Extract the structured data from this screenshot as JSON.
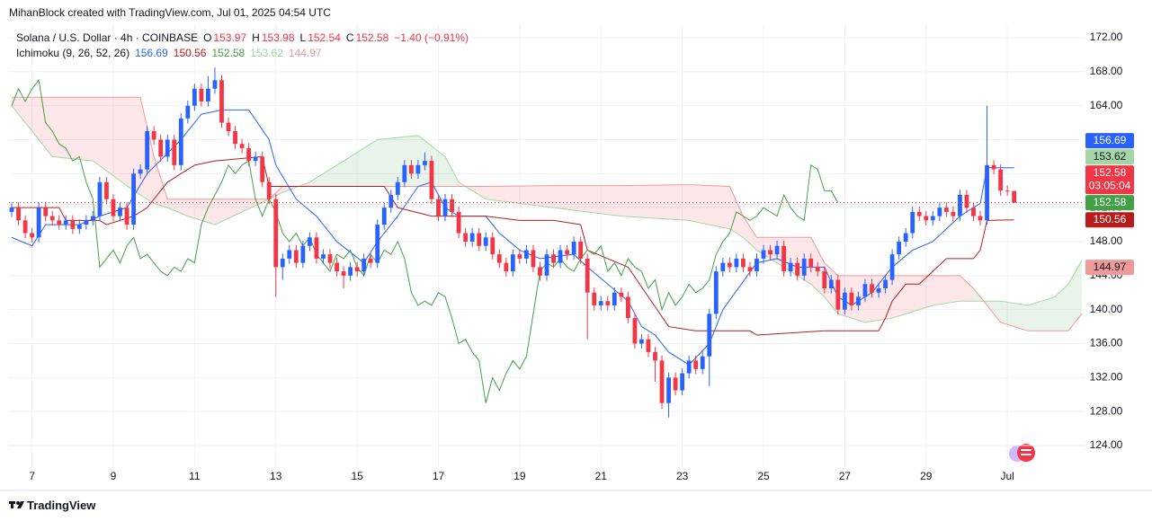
{
  "header": "MihanBlock created with TradingView.com, Jul 01, 2025 04:54 UTC",
  "footer": "TradingView",
  "chart_data": {
    "type": "candlestick",
    "title": "Solana / U.S. Dollar · 4h · COINBASE",
    "ohlc_legend": [
      {
        "label": "O",
        "value": 153.97
      },
      {
        "label": "H",
        "value": 153.98
      },
      {
        "label": "L",
        "value": 152.54
      },
      {
        "label": "C",
        "value": 152.58
      }
    ],
    "change": "−1.40 (−0.91%)",
    "legend_color": "#f23645",
    "indicator": {
      "name": "Ichimoku (9, 26, 52, 26)",
      "values": [
        {
          "value": 156.69,
          "color": "#2962ff"
        },
        {
          "value": 150.56,
          "color": "#b71c1c"
        },
        {
          "value": 152.58,
          "color": "#43a047"
        },
        {
          "value": 153.62,
          "color": "#a5d6a7"
        },
        {
          "value": 144.97,
          "color": "#ef9a9a"
        }
      ]
    },
    "up_color": "#2962ff",
    "down_color": "#f23645",
    "open": [
      151.5,
      152,
      150.5,
      149,
      148.5,
      152,
      151,
      150.5,
      150,
      150.5,
      149.5,
      150,
      150.5,
      151,
      155,
      153,
      151,
      152,
      150,
      156,
      156.5,
      161,
      160,
      158,
      160,
      157,
      162.5,
      164,
      166,
      164.5,
      166,
      167,
      162,
      161,
      159.5,
      159,
      157.5,
      158,
      155,
      153,
      145,
      146,
      147,
      145.5,
      147.5,
      148.5,
      146,
      146.5,
      145.5,
      144.5,
      144,
      145,
      144.5,
      146,
      145.5,
      150,
      152,
      153.5,
      155,
      157,
      156,
      157,
      157.5,
      153,
      151,
      153,
      151.5,
      149,
      148,
      149,
      147.5,
      148.5,
      146.5,
      145.5,
      144.5,
      146.5,
      146,
      147,
      145,
      144,
      146.5,
      145.5,
      147,
      146.5,
      148,
      146,
      142,
      140.5,
      141,
      140.5,
      142,
      141.5,
      139,
      136,
      136.5,
      135,
      134,
      129,
      132,
      130.5,
      132.5,
      134,
      133,
      134.5,
      139.5,
      144.5,
      145.5,
      145,
      146,
      145,
      144.5,
      146,
      147,
      146.5,
      147.5,
      144.5,
      145.5,
      144,
      146,
      145,
      144.5,
      142.5,
      143.5,
      140,
      142,
      140.5,
      141.5,
      143,
      142,
      142.5,
      143.5,
      146.5,
      148,
      149,
      151.5,
      151,
      150.5,
      151,
      152,
      151.5,
      151,
      153.5,
      152,
      151,
      150.5,
      157,
      156.5,
      154,
      153.97
    ],
    "high": [
      152.6,
      152.6,
      151.1,
      149.6,
      152.6,
      152.6,
      151.6,
      151.1,
      151.1,
      151.1,
      150.6,
      151.1,
      151.6,
      155.6,
      155.6,
      153.6,
      152.6,
      152.6,
      156.6,
      157.1,
      161.6,
      161.6,
      160.6,
      160.6,
      160.6,
      163.1,
      164.6,
      166.6,
      166.6,
      167.5,
      168.5,
      167.6,
      162.6,
      161.6,
      160.1,
      159.6,
      158.6,
      158.6,
      155.6,
      153.6,
      146.6,
      147.6,
      147.6,
      148.1,
      149.1,
      149.1,
      147.1,
      147.1,
      146.1,
      145.1,
      145.6,
      145.6,
      146.6,
      146.6,
      150.6,
      152.6,
      154.1,
      155.6,
      157.6,
      157.6,
      157.6,
      158.5,
      158.1,
      153.6,
      153.6,
      153.6,
      152.1,
      149.6,
      149.6,
      149.6,
      149.1,
      149.1,
      147.1,
      146.1,
      147.1,
      147.1,
      147.6,
      147.6,
      145.6,
      147.1,
      147.1,
      147.6,
      147.6,
      148.6,
      148.6,
      146.6,
      142.6,
      141.6,
      141.6,
      142.6,
      142.6,
      142.1,
      139.6,
      137.1,
      137.1,
      135.6,
      134.6,
      132.6,
      132.6,
      133.1,
      134.6,
      134.6,
      135.1,
      140.1,
      145.1,
      146.1,
      146.1,
      146.6,
      146.6,
      145.6,
      146.6,
      147.6,
      147.6,
      148.1,
      148.1,
      146.1,
      146.1,
      146.6,
      146.6,
      145.6,
      145.1,
      144.1,
      144.1,
      142.6,
      142.6,
      142.1,
      143.6,
      143.6,
      143.1,
      144.1,
      147.1,
      148.6,
      149.6,
      152.1,
      152.1,
      151.6,
      151.6,
      152.6,
      152.6,
      152.1,
      154.1,
      154.1,
      152.6,
      151.6,
      164,
      157.6,
      157.1,
      154.6,
      153.98
    ],
    "low": [
      150.9,
      149.9,
      148.4,
      147.9,
      147.9,
      150.4,
      149.9,
      149.4,
      149.4,
      148.9,
      148.9,
      149.4,
      149.9,
      150.4,
      152.4,
      150.4,
      150.4,
      149.4,
      149.4,
      155.4,
      155.9,
      159.4,
      157.4,
      157.4,
      156.4,
      156.4,
      161.9,
      163.4,
      163.9,
      163.9,
      165.4,
      161.4,
      160.4,
      158.9,
      158.4,
      156.9,
      156.9,
      154.4,
      152.4,
      141.5,
      143.5,
      145.4,
      144.9,
      144.9,
      146.9,
      145.4,
      145.4,
      144.9,
      143.9,
      142.5,
      143.4,
      143.9,
      143.9,
      144.9,
      144.9,
      149.4,
      151.4,
      152.9,
      154.4,
      155.4,
      155.4,
      156.4,
      152.4,
      150.4,
      150.4,
      150.9,
      148.4,
      147.4,
      147.4,
      146.9,
      146.9,
      145.9,
      144.9,
      143.9,
      143.9,
      145.4,
      145.4,
      144.4,
      143.4,
      143.4,
      144.9,
      144.9,
      145.9,
      145.9,
      145.4,
      136.5,
      139.9,
      139.9,
      139.9,
      139.9,
      140.9,
      138.4,
      135.4,
      135.4,
      134.4,
      131.5,
      128.3,
      127.3,
      129.9,
      129.9,
      131.9,
      132.4,
      132.4,
      131.0,
      138.9,
      143.9,
      144.4,
      144.4,
      144.4,
      143.9,
      143.9,
      145.4,
      145.9,
      145.9,
      143.9,
      143.9,
      143.4,
      143.4,
      144.4,
      143.9,
      141.9,
      141.9,
      139.4,
      139.4,
      139.9,
      139.9,
      140.9,
      141.4,
      141.4,
      141.9,
      142.9,
      145.9,
      147.4,
      148.4,
      150.4,
      149.9,
      149.9,
      150.4,
      150.9,
      150.4,
      150.4,
      151.4,
      150.4,
      149.9,
      150,
      155.9,
      153.4,
      153.4,
      152.54
    ],
    "close": [
      152,
      150.5,
      149,
      148.5,
      152,
      151,
      150.5,
      150,
      150.5,
      149.5,
      150,
      150.5,
      151,
      155,
      153,
      151,
      152,
      150,
      156,
      156.5,
      161,
      160,
      158,
      160,
      157,
      162.5,
      164,
      166,
      164.5,
      166,
      167,
      162,
      161,
      159.5,
      159,
      157.5,
      158,
      155,
      153,
      145,
      146,
      147,
      145.5,
      147.5,
      148.5,
      146,
      146.5,
      145.5,
      144.5,
      144,
      145,
      144.5,
      146,
      145.5,
      150,
      152,
      153.5,
      155,
      157,
      156,
      157,
      157.5,
      153,
      151,
      153,
      151.5,
      149,
      148,
      149,
      147.5,
      148.5,
      146.5,
      145.5,
      144.5,
      146.5,
      146,
      147,
      145,
      144,
      146.5,
      145.5,
      147,
      146.5,
      148,
      146,
      142,
      140.5,
      141,
      140.5,
      142,
      141.5,
      139,
      136,
      136.5,
      135,
      134,
      129,
      132,
      130.5,
      132.5,
      134,
      133,
      134.5,
      139.5,
      144.5,
      145.5,
      145,
      146,
      145,
      144.5,
      146,
      147,
      146.5,
      147.5,
      144.5,
      145.5,
      144,
      146,
      145,
      144.5,
      142.5,
      143.5,
      140,
      142,
      140.5,
      141.5,
      143,
      142,
      142.5,
      143.5,
      146.5,
      148,
      149,
      151.5,
      151,
      150.5,
      151,
      152,
      151.5,
      151,
      153.5,
      152,
      151,
      150.5,
      157,
      156.5,
      154,
      153.97,
      152.58
    ],
    "series": [
      {
        "color": "#2962ff",
        "x": [
          0,
          3,
          5,
          10,
          13,
          17,
          20,
          25,
          28,
          31,
          35,
          38,
          39,
          42,
          45,
          48,
          52,
          54,
          57,
          60,
          62,
          64,
          66,
          70,
          72,
          75,
          78,
          83,
          85,
          88,
          91,
          93,
          95,
          97,
          100,
          103,
          105,
          110,
          113,
          116,
          120,
          122,
          124,
          127,
          130,
          133,
          136,
          140,
          143,
          144,
          148
        ],
        "values": [
          148.5,
          147.5,
          150,
          150,
          151,
          152,
          156,
          160,
          163,
          163.5,
          163.5,
          160,
          157,
          153,
          151,
          148,
          145.5,
          148,
          151,
          154.5,
          155,
          152,
          151,
          151,
          149,
          147,
          146,
          146.5,
          145,
          143,
          141,
          138,
          137,
          135,
          133.5,
          136,
          140,
          145.5,
          146,
          145,
          145,
          141.5,
          140.5,
          142,
          145,
          147,
          148,
          151,
          152.5,
          156.69,
          156.69
        ]
      },
      {
        "color": "#b71c1c",
        "x": [
          0,
          7,
          8,
          13,
          14,
          18,
          20,
          23,
          27,
          30,
          37,
          38,
          55,
          57,
          62,
          66,
          70,
          75,
          80,
          84,
          85,
          91,
          97,
          101,
          109,
          110,
          120,
          122,
          128,
          129,
          130,
          132,
          134,
          138,
          142,
          143,
          144,
          148
        ],
        "values": [
          152,
          152,
          150.5,
          150.5,
          150,
          151,
          152,
          155,
          157,
          157.5,
          158,
          154.5,
          154.5,
          152,
          151,
          151,
          151,
          150.5,
          150.5,
          150,
          147,
          145,
          138,
          137.5,
          137.5,
          137,
          137.5,
          137.5,
          137.5,
          139,
          141,
          143,
          143,
          146,
          146,
          147,
          150.5,
          150.56
        ]
      },
      {
        "color": "#43a047",
        "values": [
          164,
          166,
          164.5,
          166,
          167,
          162,
          161,
          159.5,
          159,
          157.5,
          158,
          155,
          153,
          145,
          146,
          147,
          145.5,
          147.5,
          148.5,
          146,
          146.5,
          145.5,
          144.5,
          144,
          145,
          144.5,
          146,
          145.5,
          150,
          152,
          153.5,
          155,
          157,
          156,
          157,
          157.5,
          153,
          151,
          153,
          151.5,
          149,
          148,
          149,
          147.5,
          148.5,
          146.5,
          145.5,
          144.5,
          146.5,
          146,
          147,
          145,
          144,
          146.5,
          145.5,
          147,
          146.5,
          148,
          146,
          142,
          140.5,
          141,
          140.5,
          142,
          141.5,
          139,
          136,
          136.5,
          135,
          134,
          129,
          132,
          130.5,
          132.5,
          134,
          133,
          134.5,
          139.5,
          144.5,
          145.5,
          145,
          146,
          145,
          144.5,
          146,
          147,
          146.5,
          147.5,
          144.5,
          145.5,
          144,
          146,
          145,
          144.5,
          142.5,
          143.5,
          140,
          142,
          140.5,
          141.5,
          143,
          142,
          142.5,
          143.5,
          146.5,
          148,
          149,
          151.5,
          151,
          150.5,
          151,
          152,
          151.5,
          151,
          153.5,
          152,
          151,
          150.5,
          157,
          156.5,
          154,
          153.97,
          152.58
        ]
      }
    ],
    "cloud": {
      "x": [
        0,
        4,
        6,
        12,
        18,
        19,
        21,
        23,
        26,
        30,
        34,
        38,
        40,
        44,
        50,
        54,
        60,
        64,
        66,
        70,
        80,
        90,
        100,
        106,
        108,
        110,
        116,
        118,
        120,
        122,
        126,
        130,
        136,
        140,
        142,
        146,
        150,
        154,
        156,
        158
      ],
      "span_a": [
        164,
        160,
        158,
        157.5,
        154,
        153.5,
        152.5,
        152,
        151,
        150,
        151.5,
        153,
        153.8,
        155,
        158,
        160,
        160.5,
        158,
        155,
        153,
        152,
        151,
        150.5,
        149.5,
        148.5,
        147,
        144,
        143,
        141.5,
        139.5,
        138.5,
        139,
        140.5,
        141,
        141,
        141,
        140.5,
        141.5,
        143,
        145.8
      ],
      "span_b": [
        165,
        165,
        165,
        165,
        165,
        165,
        158,
        153,
        153,
        153,
        153,
        153,
        154.5,
        154.5,
        154.5,
        154.5,
        154.5,
        154.5,
        154.5,
        154.5,
        154.6,
        154.6,
        154.7,
        154.5,
        151,
        148.5,
        148.5,
        148.5,
        145.5,
        144,
        144,
        144,
        144,
        144,
        142.5,
        138.5,
        137.5,
        137.5,
        137.5,
        139.5
      ],
      "span_a_color": "#a5d6a7",
      "span_b_color": "#ef9a9a",
      "up_fill": "rgba(67,160,71,0.12)",
      "down_fill": "rgba(242,54,69,0.12)"
    },
    "price_labels": [
      {
        "value": 156.69,
        "color": "#2962ff",
        "text_color": "#ffffff"
      },
      {
        "value": 153.62,
        "color": "#a5d6a7",
        "text_color": "#131722"
      },
      {
        "value": 152.58,
        "color": "#f23645",
        "text_color": "#ffffff",
        "countdown": "03:05:04",
        "price_line": true
      },
      {
        "value": 152.58,
        "color": "#43a047",
        "text_color": "#ffffff"
      },
      {
        "value": 150.56,
        "color": "#b71c1c",
        "text_color": "#ffffff"
      },
      {
        "value": 144.97,
        "color": "#ef9a9a",
        "text_color": "#131722"
      }
    ],
    "xlim": [
      -0.4,
      158.4
    ],
    "ylim": [
      121.46,
      173.48
    ],
    "xticks": [
      {
        "value": 3,
        "label": "7"
      },
      {
        "value": 15,
        "label": "9"
      },
      {
        "value": 27,
        "label": "11"
      },
      {
        "value": 39,
        "label": "13"
      },
      {
        "value": 51,
        "label": "15"
      },
      {
        "value": 63,
        "label": "17"
      },
      {
        "value": 75,
        "label": "19"
      },
      {
        "value": 87,
        "label": "21"
      },
      {
        "value": 99,
        "label": "23"
      },
      {
        "value": 111,
        "label": "25"
      },
      {
        "value": 123,
        "label": "27"
      },
      {
        "value": 135,
        "label": "29"
      },
      {
        "value": 147,
        "label": "Jul"
      }
    ],
    "yticks": [
      {
        "value": 124,
        "label": "124.00"
      },
      {
        "value": 128,
        "label": "128.00"
      },
      {
        "value": 132,
        "label": "132.00"
      },
      {
        "value": 136,
        "label": "136.00"
      },
      {
        "value": 140,
        "label": "140.00"
      },
      {
        "value": 144,
        "label": "144.00"
      },
      {
        "value": 148,
        "label": "148.00"
      },
      {
        "value": 152,
        "label": "152.00"
      },
      {
        "value": 156,
        "label": "156.00"
      },
      {
        "value": 160,
        "label": "160.00"
      },
      {
        "value": 164,
        "label": "164.00"
      },
      {
        "value": 168,
        "label": "168.00"
      },
      {
        "value": 172,
        "label": "172.00"
      }
    ],
    "grid": true
  }
}
